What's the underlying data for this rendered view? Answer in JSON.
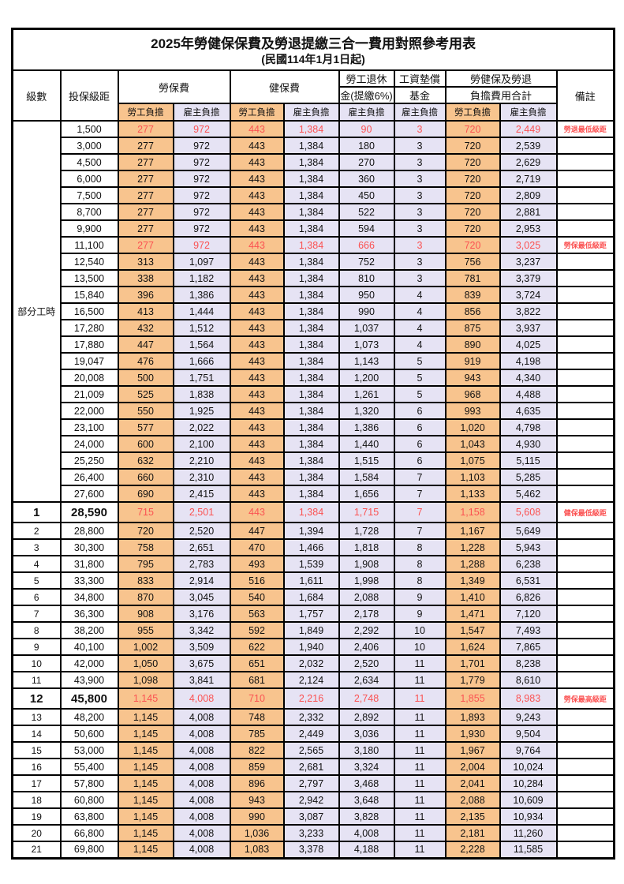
{
  "title": "2025年勞健保保費及勞退提繳三合一費用對照參考用表",
  "subtitle": "(民國114年1月1日起)",
  "colors": {
    "employee_bg": "#F8C48E",
    "employer_bg": "#E6E3F4",
    "highlight_text": "#FB5252",
    "border": "#000000"
  },
  "header": {
    "level": "級數",
    "bracket": "投保級距",
    "labor_group": "勞保費",
    "health_group": "健保費",
    "pension_line1": "勞工退休",
    "pension_line2": "金(提繳6%)",
    "wage_line1": "工資墊償",
    "wage_line2": "基金",
    "total_line1": "勞健保及勞退",
    "total_line2": "負擔費用合計",
    "note": "備註",
    "employee_label": "勞工負擔",
    "employer_label": "雇主負擔"
  },
  "part_time_label": "部分工時",
  "rows": [
    {
      "level": "部分工時",
      "level_span": 23,
      "bracket": "1,500",
      "values": [
        "277",
        "972",
        "443",
        "1,384",
        "90",
        "3",
        "720",
        "2,449"
      ],
      "note": "勞退最低級距",
      "highlight": true
    },
    {
      "bracket": "3,000",
      "values": [
        "277",
        "972",
        "443",
        "1,384",
        "180",
        "3",
        "720",
        "2,539"
      ],
      "note": ""
    },
    {
      "bracket": "4,500",
      "values": [
        "277",
        "972",
        "443",
        "1,384",
        "270",
        "3",
        "720",
        "2,629"
      ],
      "note": ""
    },
    {
      "bracket": "6,000",
      "values": [
        "277",
        "972",
        "443",
        "1,384",
        "360",
        "3",
        "720",
        "2,719"
      ],
      "note": ""
    },
    {
      "bracket": "7,500",
      "values": [
        "277",
        "972",
        "443",
        "1,384",
        "450",
        "3",
        "720",
        "2,809"
      ],
      "note": ""
    },
    {
      "bracket": "8,700",
      "values": [
        "277",
        "972",
        "443",
        "1,384",
        "522",
        "3",
        "720",
        "2,881"
      ],
      "note": ""
    },
    {
      "bracket": "9,900",
      "values": [
        "277",
        "972",
        "443",
        "1,384",
        "594",
        "3",
        "720",
        "2,953"
      ],
      "note": ""
    },
    {
      "bracket": "11,100",
      "values": [
        "277",
        "972",
        "443",
        "1,384",
        "666",
        "3",
        "720",
        "3,025"
      ],
      "note": "勞保最低級距",
      "highlight": true
    },
    {
      "bracket": "12,540",
      "values": [
        "313",
        "1,097",
        "443",
        "1,384",
        "752",
        "3",
        "756",
        "3,237"
      ],
      "note": ""
    },
    {
      "bracket": "13,500",
      "values": [
        "338",
        "1,182",
        "443",
        "1,384",
        "810",
        "3",
        "781",
        "3,379"
      ],
      "note": ""
    },
    {
      "bracket": "15,840",
      "values": [
        "396",
        "1,386",
        "443",
        "1,384",
        "950",
        "4",
        "839",
        "3,724"
      ],
      "note": ""
    },
    {
      "bracket": "16,500",
      "values": [
        "413",
        "1,444",
        "443",
        "1,384",
        "990",
        "4",
        "856",
        "3,822"
      ],
      "note": ""
    },
    {
      "bracket": "17,280",
      "values": [
        "432",
        "1,512",
        "443",
        "1,384",
        "1,037",
        "4",
        "875",
        "3,937"
      ],
      "note": ""
    },
    {
      "bracket": "17,880",
      "values": [
        "447",
        "1,564",
        "443",
        "1,384",
        "1,073",
        "4",
        "890",
        "4,025"
      ],
      "note": ""
    },
    {
      "bracket": "19,047",
      "values": [
        "476",
        "1,666",
        "443",
        "1,384",
        "1,143",
        "5",
        "919",
        "4,198"
      ],
      "note": ""
    },
    {
      "bracket": "20,008",
      "values": [
        "500",
        "1,751",
        "443",
        "1,384",
        "1,200",
        "5",
        "943",
        "4,340"
      ],
      "note": ""
    },
    {
      "bracket": "21,009",
      "values": [
        "525",
        "1,838",
        "443",
        "1,384",
        "1,261",
        "5",
        "968",
        "4,488"
      ],
      "note": ""
    },
    {
      "bracket": "22,000",
      "values": [
        "550",
        "1,925",
        "443",
        "1,384",
        "1,320",
        "6",
        "993",
        "4,635"
      ],
      "note": ""
    },
    {
      "bracket": "23,100",
      "values": [
        "577",
        "2,022",
        "443",
        "1,384",
        "1,386",
        "6",
        "1,020",
        "4,798"
      ],
      "note": ""
    },
    {
      "bracket": "24,000",
      "values": [
        "600",
        "2,100",
        "443",
        "1,384",
        "1,440",
        "6",
        "1,043",
        "4,930"
      ],
      "note": ""
    },
    {
      "bracket": "25,250",
      "values": [
        "632",
        "2,210",
        "443",
        "1,384",
        "1,515",
        "6",
        "1,075",
        "5,115"
      ],
      "note": ""
    },
    {
      "bracket": "26,400",
      "values": [
        "660",
        "2,310",
        "443",
        "1,384",
        "1,584",
        "7",
        "1,103",
        "5,285"
      ],
      "note": ""
    },
    {
      "bracket": "27,600",
      "values": [
        "690",
        "2,415",
        "443",
        "1,384",
        "1,656",
        "7",
        "1,133",
        "5,462"
      ],
      "note": ""
    },
    {
      "level": "1",
      "bracket": "28,590",
      "values": [
        "715",
        "2,501",
        "443",
        "1,384",
        "1,715",
        "7",
        "1,158",
        "5,608"
      ],
      "note": "健保最低級距",
      "highlight": true,
      "big": true
    },
    {
      "level": "2",
      "bracket": "28,800",
      "values": [
        "720",
        "2,520",
        "447",
        "1,394",
        "1,728",
        "7",
        "1,167",
        "5,649"
      ],
      "note": ""
    },
    {
      "level": "3",
      "bracket": "30,300",
      "values": [
        "758",
        "2,651",
        "470",
        "1,466",
        "1,818",
        "8",
        "1,228",
        "5,943"
      ],
      "note": ""
    },
    {
      "level": "4",
      "bracket": "31,800",
      "values": [
        "795",
        "2,783",
        "493",
        "1,539",
        "1,908",
        "8",
        "1,288",
        "6,238"
      ],
      "note": ""
    },
    {
      "level": "5",
      "bracket": "33,300",
      "values": [
        "833",
        "2,914",
        "516",
        "1,611",
        "1,998",
        "8",
        "1,349",
        "6,531"
      ],
      "note": ""
    },
    {
      "level": "6",
      "bracket": "34,800",
      "values": [
        "870",
        "3,045",
        "540",
        "1,684",
        "2,088",
        "9",
        "1,410",
        "6,826"
      ],
      "note": ""
    },
    {
      "level": "7",
      "bracket": "36,300",
      "values": [
        "908",
        "3,176",
        "563",
        "1,757",
        "2,178",
        "9",
        "1,471",
        "7,120"
      ],
      "note": ""
    },
    {
      "level": "8",
      "bracket": "38,200",
      "values": [
        "955",
        "3,342",
        "592",
        "1,849",
        "2,292",
        "10",
        "1,547",
        "7,493"
      ],
      "note": ""
    },
    {
      "level": "9",
      "bracket": "40,100",
      "values": [
        "1,002",
        "3,509",
        "622",
        "1,940",
        "2,406",
        "10",
        "1,624",
        "7,865"
      ],
      "note": ""
    },
    {
      "level": "10",
      "bracket": "42,000",
      "values": [
        "1,050",
        "3,675",
        "651",
        "2,032",
        "2,520",
        "11",
        "1,701",
        "8,238"
      ],
      "note": ""
    },
    {
      "level": "11",
      "bracket": "43,900",
      "values": [
        "1,098",
        "3,841",
        "681",
        "2,124",
        "2,634",
        "11",
        "1,779",
        "8,610"
      ],
      "note": ""
    },
    {
      "level": "12",
      "bracket": "45,800",
      "values": [
        "1,145",
        "4,008",
        "710",
        "2,216",
        "2,748",
        "11",
        "1,855",
        "8,983"
      ],
      "note": "勞保最高級距",
      "highlight": true,
      "big": true
    },
    {
      "level": "13",
      "bracket": "48,200",
      "values": [
        "1,145",
        "4,008",
        "748",
        "2,332",
        "2,892",
        "11",
        "1,893",
        "9,243"
      ],
      "note": ""
    },
    {
      "level": "14",
      "bracket": "50,600",
      "values": [
        "1,145",
        "4,008",
        "785",
        "2,449",
        "3,036",
        "11",
        "1,930",
        "9,504"
      ],
      "note": ""
    },
    {
      "level": "15",
      "bracket": "53,000",
      "values": [
        "1,145",
        "4,008",
        "822",
        "2,565",
        "3,180",
        "11",
        "1,967",
        "9,764"
      ],
      "note": ""
    },
    {
      "level": "16",
      "bracket": "55,400",
      "values": [
        "1,145",
        "4,008",
        "859",
        "2,681",
        "3,324",
        "11",
        "2,004",
        "10,024"
      ],
      "note": ""
    },
    {
      "level": "17",
      "bracket": "57,800",
      "values": [
        "1,145",
        "4,008",
        "896",
        "2,797",
        "3,468",
        "11",
        "2,041",
        "10,284"
      ],
      "note": ""
    },
    {
      "level": "18",
      "bracket": "60,800",
      "values": [
        "1,145",
        "4,008",
        "943",
        "2,942",
        "3,648",
        "11",
        "2,088",
        "10,609"
      ],
      "note": ""
    },
    {
      "level": "19",
      "bracket": "63,800",
      "values": [
        "1,145",
        "4,008",
        "990",
        "3,087",
        "3,828",
        "11",
        "2,135",
        "10,934"
      ],
      "note": ""
    },
    {
      "level": "20",
      "bracket": "66,800",
      "values": [
        "1,145",
        "4,008",
        "1,036",
        "3,233",
        "4,008",
        "11",
        "2,181",
        "11,260"
      ],
      "note": ""
    },
    {
      "level": "21",
      "bracket": "69,800",
      "values": [
        "1,145",
        "4,008",
        "1,083",
        "3,378",
        "4,188",
        "11",
        "2,228",
        "11,585"
      ],
      "note": ""
    }
  ]
}
